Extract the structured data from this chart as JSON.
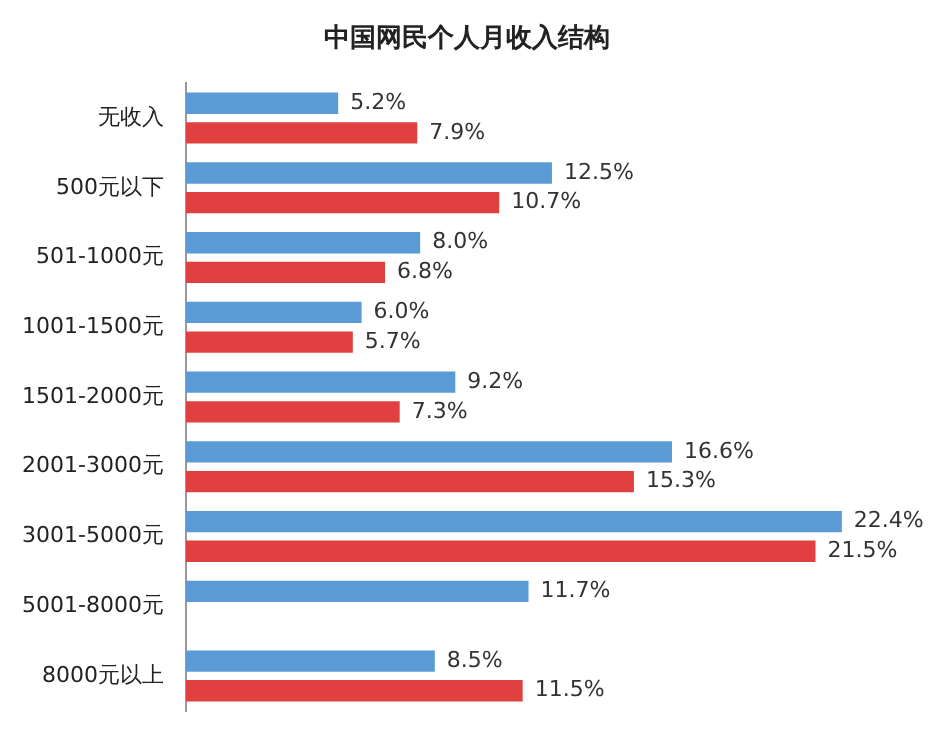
{
  "chart_data": {
    "type": "bar",
    "orientation": "horizontal",
    "title": "中国网民个人月收入结构",
    "categories": [
      "无收入",
      "500元以下",
      "501-1000元",
      "1001-1500元",
      "1501-2000元",
      "2001-3000元",
      "3001-5000元",
      "5001-8000元",
      "8000元以上"
    ],
    "series": [
      {
        "color": "#5b9bd5",
        "values": [
          5.2,
          12.5,
          8.0,
          6.0,
          9.2,
          16.6,
          22.4,
          11.7,
          8.5
        ],
        "value_labels": [
          "5.2%",
          "12.5%",
          "8.0%",
          "6.0%",
          "9.2%",
          "16.6%",
          "22.4%",
          "11.7%",
          "8.5%"
        ]
      },
      {
        "color": "#e0403f",
        "values": [
          7.9,
          10.7,
          6.8,
          5.7,
          7.3,
          15.3,
          21.5,
          null,
          11.5
        ],
        "value_labels": [
          "7.9%",
          "10.7%",
          "6.8%",
          "5.7%",
          "7.3%",
          "15.3%",
          "21.5%",
          null,
          "11.5%"
        ]
      }
    ],
    "tick_labels": "y",
    "legend": false
  }
}
